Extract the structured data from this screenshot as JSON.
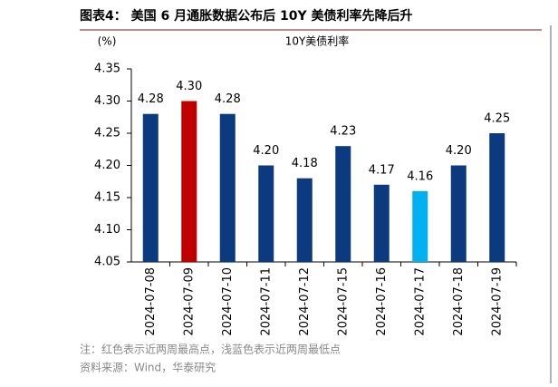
{
  "chart_data": {
    "type": "bar",
    "title": "图表4：  美国 6 月通胀数据公布后 10Y 美债利率先降后升",
    "subtitle": "10Y美债利率",
    "y_label": "(%)",
    "categories": [
      "2024-07-08",
      "2024-07-09",
      "2024-07-10",
      "2024-07-11",
      "2024-07-12",
      "2024-07-15",
      "2024-07-16",
      "2024-07-17",
      "2024-07-18",
      "2024-07-19"
    ],
    "values": [
      4.28,
      4.3,
      4.28,
      4.2,
      4.18,
      4.23,
      4.17,
      4.16,
      4.2,
      4.25
    ],
    "value_labels": [
      "4.28",
      "4.30",
      "4.28",
      "4.20",
      "4.18",
      "4.23",
      "4.17",
      "4.16",
      "4.20",
      "4.25"
    ],
    "colors": [
      "#0b3a7e",
      "#c00000",
      "#0b3a7e",
      "#0b3a7e",
      "#0b3a7e",
      "#0b3a7e",
      "#0b3a7e",
      "#00b0f0",
      "#0b3a7e",
      "#0b3a7e"
    ],
    "ylim": [
      4.05,
      4.35
    ],
    "yticks": [
      4.05,
      {
        "value": 4.1,
        "label": "4.10"
      },
      4.15,
      {
        "value": 4.2,
        "label": "4.20"
      },
      4.25,
      {
        "value": 4.3,
        "label": "4.30"
      },
      4.35
    ],
    "grid": false
  },
  "notes": [
    "注：红色表示近两周最高点，浅蓝色表示近两周最低点",
    "资料来源：Wind，华泰研究"
  ]
}
